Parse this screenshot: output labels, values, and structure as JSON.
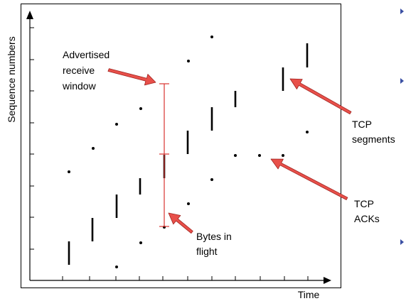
{
  "ylabel": "Sequence numbers",
  "xlabel": "Time",
  "annotations": {
    "advertised_window": [
      "Advertised",
      "receive",
      "window"
    ],
    "bytes_in_flight": [
      "Bytes in",
      "flight"
    ],
    "tcp_segments": [
      "TCP",
      "segments"
    ],
    "tcp_acks": [
      "TCP",
      "ACKs"
    ]
  },
  "colors": {
    "frame": "#000000",
    "annotation_arrow": "#e8504a",
    "annotation_arrow_outline": "#a02420",
    "window_marker": "#d8332f",
    "bullet": "#3a4fa3"
  }
}
